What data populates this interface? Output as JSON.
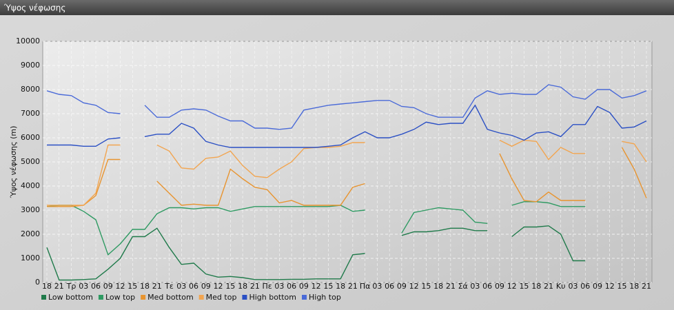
{
  "chart_data": {
    "type": "line",
    "title": "Ύψος νέφωσης",
    "ylabel": "Ύψος νέφωσης (m)",
    "categories": [
      "18",
      "21",
      "Τρ",
      "03",
      "06",
      "09",
      "12",
      "15",
      "18",
      "21",
      "Τε",
      "03",
      "06",
      "09",
      "12",
      "15",
      "18",
      "21",
      "Πε",
      "03",
      "06",
      "09",
      "12",
      "15",
      "18",
      "21",
      "Πα",
      "03",
      "06",
      "09",
      "12",
      "15",
      "18",
      "21",
      "Σά",
      "03",
      "06",
      "09",
      "12",
      "15",
      "18",
      "21",
      "Κυ",
      "03",
      "06",
      "09",
      "12",
      "15",
      "18",
      "21"
    ],
    "ylim": [
      0,
      10000
    ],
    "yticks": [
      0,
      1000,
      2000,
      3000,
      4000,
      5000,
      6000,
      7000,
      8000,
      9000,
      10000
    ],
    "grid": true,
    "legend": "bottom",
    "series": [
      {
        "name": "Low bottom",
        "color": "#1f7a4a",
        "values": [
          1450,
          100,
          100,
          120,
          150,
          550,
          1000,
          1900,
          1900,
          2250,
          1450,
          750,
          800,
          350,
          220,
          250,
          200,
          120,
          120,
          120,
          130,
          130,
          150,
          150,
          150,
          1150,
          1200,
          null,
          null,
          1950,
          2100,
          2100,
          2150,
          2250,
          2250,
          2150,
          2150,
          null,
          1900,
          2300,
          2300,
          2350,
          2000,
          900,
          900,
          null,
          null,
          null,
          null,
          null
        ]
      },
      {
        "name": "Low top",
        "color": "#2e9a62",
        "values": [
          3150,
          3200,
          3200,
          2950,
          2600,
          1150,
          1600,
          2200,
          2200,
          2850,
          3100,
          3100,
          3050,
          3100,
          3100,
          2950,
          3050,
          3150,
          3150,
          3150,
          3150,
          3150,
          3150,
          3150,
          3200,
          2950,
          3000,
          null,
          null,
          2050,
          2900,
          3000,
          3100,
          3050,
          3000,
          2500,
          2450,
          null,
          3200,
          3350,
          3350,
          3300,
          3150,
          3150,
          3150,
          null,
          null,
          null,
          null,
          null
        ]
      },
      {
        "name": "Med bottom",
        "color": "#e8942f",
        "values": [
          3150,
          3150,
          3150,
          3200,
          3600,
          5100,
          5100,
          null,
          null,
          4200,
          3700,
          3200,
          3250,
          3200,
          3200,
          4700,
          4300,
          3950,
          3850,
          3300,
          3400,
          3200,
          3200,
          3200,
          3200,
          3950,
          4100,
          null,
          null,
          null,
          null,
          null,
          null,
          null,
          null,
          null,
          null,
          5350,
          4300,
          3400,
          3350,
          3750,
          3400,
          3400,
          3400,
          null,
          null,
          5600,
          4700,
          3500
        ]
      },
      {
        "name": "Med top",
        "color": "#f2a550",
        "values": [
          3200,
          3200,
          3200,
          3200,
          3700,
          5700,
          5700,
          null,
          null,
          5700,
          5450,
          4750,
          4700,
          5150,
          5200,
          5450,
          4850,
          4400,
          4350,
          4700,
          5000,
          5550,
          5600,
          5600,
          5650,
          5800,
          5800,
          null,
          null,
          null,
          null,
          null,
          null,
          null,
          null,
          null,
          null,
          5900,
          5650,
          5900,
          5850,
          5100,
          5600,
          5350,
          5350,
          null,
          null,
          5850,
          5750,
          5000
        ]
      },
      {
        "name": "High bottom",
        "color": "#2a4fc4",
        "values": [
          5700,
          5700,
          5700,
          5650,
          5650,
          5950,
          6000,
          null,
          6050,
          6150,
          6150,
          6600,
          6400,
          5850,
          5700,
          5600,
          5600,
          5600,
          5600,
          5600,
          5600,
          5600,
          5600,
          5650,
          5700,
          6000,
          6250,
          6000,
          6000,
          6150,
          6350,
          6650,
          6550,
          6600,
          6600,
          7350,
          6350,
          6200,
          6100,
          5900,
          6200,
          6250,
          6050,
          6550,
          6550,
          7300,
          7050,
          6400,
          6450,
          6700
        ]
      },
      {
        "name": "High top",
        "color": "#4a6ad8",
        "values": [
          7950,
          7800,
          7750,
          7450,
          7350,
          7050,
          7000,
          null,
          7350,
          6850,
          6850,
          7150,
          7200,
          7150,
          6900,
          6700,
          6700,
          6400,
          6400,
          6350,
          6400,
          7150,
          7250,
          7350,
          7400,
          7450,
          7500,
          7550,
          7550,
          7300,
          7250,
          7000,
          6850,
          6850,
          6850,
          7650,
          7950,
          7800,
          7850,
          7800,
          7800,
          8200,
          8100,
          7700,
          7600,
          8000,
          8000,
          7650,
          7750,
          7950
        ]
      }
    ]
  }
}
